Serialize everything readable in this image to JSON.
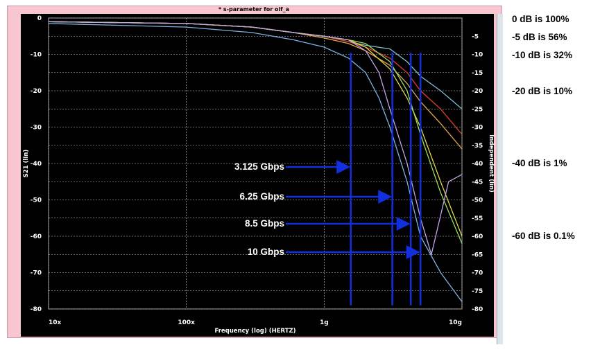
{
  "window": {
    "title": "* s-parameter for oif_a"
  },
  "chart_data": {
    "type": "line",
    "title": "* s-parameter for oif_a",
    "xlabel": "Frequency (log) (HERTZ)",
    "ylabel": "S21 (lin)",
    "ylabel_right": "Independent (lin)",
    "xscale": "log",
    "xlim": [
      10000000,
      10000000000
    ],
    "ylim": [
      -80,
      0
    ],
    "grid": true,
    "background": "#000000",
    "x_ticks": [
      {
        "value": 10000000,
        "label": "10x"
      },
      {
        "value": 100000000,
        "label": "100x"
      },
      {
        "value": 1000000000,
        "label": "1g"
      },
      {
        "value": 10000000000,
        "label": "10g"
      }
    ],
    "y_ticks_left": [
      {
        "value": 0,
        "label": "0"
      },
      {
        "value": -10,
        "label": "-10"
      },
      {
        "value": -20,
        "label": "-20"
      },
      {
        "value": -30,
        "label": "-30"
      },
      {
        "value": -40,
        "label": "-40"
      },
      {
        "value": -50,
        "label": "-50"
      },
      {
        "value": -60,
        "label": "-60"
      },
      {
        "value": -70,
        "label": "-70"
      },
      {
        "value": -80,
        "label": "-80"
      }
    ],
    "y_ticks_right": [
      {
        "value": -5,
        "label": "-5"
      },
      {
        "value": -10,
        "label": "-10"
      },
      {
        "value": -15,
        "label": "-15"
      },
      {
        "value": -20,
        "label": "-20"
      },
      {
        "value": -25,
        "label": "-25"
      },
      {
        "value": -30,
        "label": "-30"
      },
      {
        "value": -35,
        "label": "-35"
      },
      {
        "value": -40,
        "label": "-40"
      },
      {
        "value": -45,
        "label": "-45"
      },
      {
        "value": -50,
        "label": "-50"
      },
      {
        "value": -55,
        "label": "-55"
      },
      {
        "value": -60,
        "label": "-60"
      },
      {
        "value": -65,
        "label": "-65"
      },
      {
        "value": -70,
        "label": "-70"
      },
      {
        "value": -75,
        "label": "-75"
      },
      {
        "value": -80,
        "label": "-80"
      }
    ],
    "series": [
      {
        "color": "#7ec4d6",
        "x": [
          10000000,
          100000000,
          300000000,
          600000000,
          1000000000,
          1500000000,
          2000000000,
          3000000000,
          4000000000,
          5000000000,
          7000000000,
          10000000000
        ],
        "y": [
          -1,
          -1.5,
          -2.5,
          -4,
          -5,
          -6.5,
          -7.5,
          -8.5,
          -12,
          -16,
          -20,
          -25
        ]
      },
      {
        "color": "#e0412b",
        "x": [
          10000000,
          100000000,
          300000000,
          600000000,
          1000000000,
          1500000000,
          2000000000,
          3000000000,
          4000000000,
          5000000000,
          7000000000,
          10000000000
        ],
        "y": [
          -1,
          -1.5,
          -2.5,
          -4,
          -5,
          -6.5,
          -8,
          -11,
          -15,
          -20,
          -25,
          -32
        ]
      },
      {
        "color": "#e8a84a",
        "x": [
          10000000,
          100000000,
          300000000,
          600000000,
          1000000000,
          1500000000,
          2000000000,
          3000000000,
          4000000000,
          5000000000,
          7000000000,
          10000000000
        ],
        "y": [
          -1,
          -1.5,
          -2.5,
          -4,
          -5.5,
          -7,
          -9,
          -13,
          -18,
          -23,
          -29,
          -36
        ]
      },
      {
        "color": "#e6d84a",
        "x": [
          10000000,
          100000000,
          300000000,
          600000000,
          1000000000,
          1500000000,
          2000000000,
          3000000000,
          4000000000,
          5000000000,
          7000000000,
          10000000000
        ],
        "y": [
          -1,
          -1.5,
          -2.5,
          -4,
          -5,
          -6,
          -8,
          -14,
          -22,
          -30,
          -45,
          -60
        ]
      },
      {
        "color": "#9be05c",
        "x": [
          10000000,
          100000000,
          300000000,
          600000000,
          1000000000,
          1500000000,
          2000000000,
          3000000000,
          4000000000,
          5000000000,
          7000000000,
          10000000000
        ],
        "y": [
          -1,
          -1.5,
          -2.5,
          -4,
          -5,
          -6,
          -7,
          -12,
          -20,
          -32,
          -48,
          -62
        ]
      },
      {
        "color": "#c3a6e8",
        "x": [
          10000000,
          100000000,
          300000000,
          600000000,
          1000000000,
          1500000000,
          2000000000,
          2500000000,
          3000000000,
          4000000000,
          5000000000,
          6000000000,
          8000000000,
          10000000000
        ],
        "y": [
          -1,
          -1.5,
          -2.5,
          -4,
          -5,
          -6,
          -9,
          -15,
          -25,
          -40,
          -55,
          -65,
          -45,
          -43
        ]
      },
      {
        "color": "#7fb3e6",
        "x": [
          10000000,
          100000000,
          300000000,
          600000000,
          1000000000,
          1500000000,
          2000000000,
          2500000000,
          3000000000,
          4000000000,
          5000000000,
          7000000000,
          10000000000
        ],
        "y": [
          -1.5,
          -2.5,
          -4,
          -6,
          -8,
          -11,
          -15,
          -22,
          -30,
          -45,
          -60,
          -70,
          -78
        ]
      }
    ],
    "markers": [
      {
        "label": "3.125 Gbps",
        "x": 1560000000
      },
      {
        "label": "6.25 Gbps",
        "x": 3125000000
      },
      {
        "label": "8.5 Gbps",
        "x": 4250000000
      },
      {
        "label": "10 Gbps",
        "x": 5000000000
      }
    ],
    "marker_color": "#1030e0",
    "annotations": [
      {
        "text": "0 dB is 100%"
      },
      {
        "text": "-5 dB is 56%"
      },
      {
        "text": "-10 dB is 32%"
      },
      {
        "text": "-20 dB is 10%"
      },
      {
        "text": "-40 dB is 1%"
      },
      {
        "text": "-60 dB is 0.1%"
      }
    ]
  }
}
